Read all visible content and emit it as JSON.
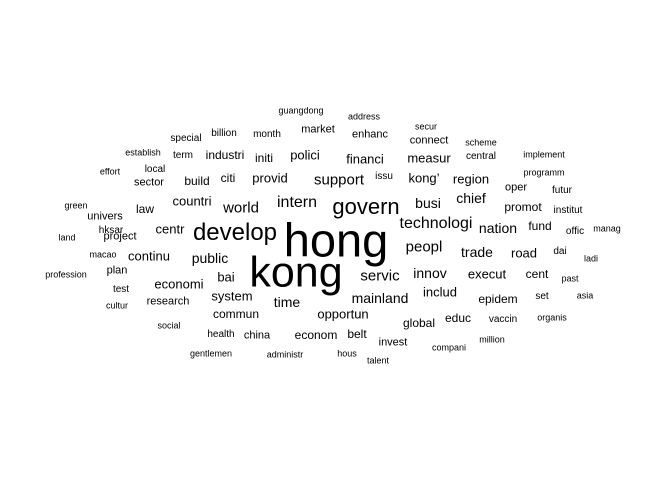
{
  "words": [
    {
      "text": "hong",
      "size": 47
    },
    {
      "text": "kong",
      "size": 43
    },
    {
      "text": "develop",
      "size": 24
    },
    {
      "text": "govern",
      "size": 22
    },
    {
      "text": "intern",
      "size": 16
    },
    {
      "text": "technologi",
      "size": 16
    },
    {
      "text": "servic",
      "size": 15
    },
    {
      "text": "world",
      "size": 15
    },
    {
      "text": "support",
      "size": 15
    },
    {
      "text": "peopl",
      "size": 15
    },
    {
      "text": "busi",
      "size": 14
    },
    {
      "text": "public",
      "size": 14
    },
    {
      "text": "innov",
      "size": 14
    },
    {
      "text": "nation",
      "size": 14
    },
    {
      "text": "chief",
      "size": 14
    },
    {
      "text": "trade",
      "size": 14
    },
    {
      "text": "time",
      "size": 14
    },
    {
      "text": "mainland",
      "size": 14
    },
    {
      "text": "region",
      "size": 13
    },
    {
      "text": "measur",
      "size": 13
    },
    {
      "text": "financi",
      "size": 13
    },
    {
      "text": "provid",
      "size": 13
    },
    {
      "text": "countri",
      "size": 13
    },
    {
      "text": "centr",
      "size": 13
    },
    {
      "text": "continu",
      "size": 13
    },
    {
      "text": "economi",
      "size": 13
    },
    {
      "text": "bai",
      "size": 13
    },
    {
      "text": "system",
      "size": 13
    },
    {
      "text": "opportun",
      "size": 13
    },
    {
      "text": "includ",
      "size": 13
    },
    {
      "text": "execut",
      "size": 13
    },
    {
      "text": "road",
      "size": 13
    },
    {
      "text": "kong’",
      "size": 13
    },
    {
      "text": "polici",
      "size": 13
    },
    {
      "text": "commun",
      "size": 12
    },
    {
      "text": "econom",
      "size": 12
    },
    {
      "text": "belt",
      "size": 12
    },
    {
      "text": "global",
      "size": 12
    },
    {
      "text": "educ",
      "size": 12
    },
    {
      "text": "epidem",
      "size": 12
    },
    {
      "text": "promot",
      "size": 12
    },
    {
      "text": "fund",
      "size": 12
    },
    {
      "text": "cent",
      "size": 12
    },
    {
      "text": "citi",
      "size": 12
    },
    {
      "text": "industri",
      "size": 12
    },
    {
      "text": "initi",
      "size": 12
    },
    {
      "text": "build",
      "size": 12
    },
    {
      "text": "law",
      "size": 12
    },
    {
      "text": "project",
      "size": 11
    },
    {
      "text": "research",
      "size": 11
    },
    {
      "text": "oper",
      "size": 11
    },
    {
      "text": "connect",
      "size": 11
    },
    {
      "text": "enhanc",
      "size": 11
    },
    {
      "text": "market",
      "size": 11
    },
    {
      "text": "sector",
      "size": 11
    },
    {
      "text": "univers",
      "size": 11
    },
    {
      "text": "plan",
      "size": 11
    },
    {
      "text": "invest",
      "size": 11
    },
    {
      "text": "china",
      "size": 11
    },
    {
      "text": "health",
      "size": 10
    },
    {
      "text": "dai",
      "size": 10
    },
    {
      "text": "hksar",
      "size": 10
    },
    {
      "text": "test",
      "size": 10
    },
    {
      "text": "term",
      "size": 10
    },
    {
      "text": "month",
      "size": 10
    },
    {
      "text": "central",
      "size": 10
    },
    {
      "text": "local",
      "size": 10
    },
    {
      "text": "offic",
      "size": 10
    },
    {
      "text": "institut",
      "size": 10
    },
    {
      "text": "futur",
      "size": 10
    },
    {
      "text": "vaccin",
      "size": 10
    },
    {
      "text": "special",
      "size": 10
    },
    {
      "text": "billion",
      "size": 10
    },
    {
      "text": "issu",
      "size": 10
    },
    {
      "text": "set",
      "size": 10
    },
    {
      "text": "guangdong",
      "size": 9
    },
    {
      "text": "address",
      "size": 9
    },
    {
      "text": "secur",
      "size": 9
    },
    {
      "text": "scheme",
      "size": 9
    },
    {
      "text": "implement",
      "size": 9
    },
    {
      "text": "establish",
      "size": 9
    },
    {
      "text": "effort",
      "size": 9
    },
    {
      "text": "programm",
      "size": 9
    },
    {
      "text": "green",
      "size": 9
    },
    {
      "text": "land",
      "size": 9
    },
    {
      "text": "macao",
      "size": 9
    },
    {
      "text": "profession",
      "size": 9
    },
    {
      "text": "cultur",
      "size": 9
    },
    {
      "text": "social",
      "size": 9
    },
    {
      "text": "gentlemen",
      "size": 9
    },
    {
      "text": "administr",
      "size": 9
    },
    {
      "text": "hous",
      "size": 9
    },
    {
      "text": "talent",
      "size": 9
    },
    {
      "text": "compani",
      "size": 9
    },
    {
      "text": "million",
      "size": 9
    },
    {
      "text": "organis",
      "size": 9
    },
    {
      "text": "past",
      "size": 9
    },
    {
      "text": "asia",
      "size": 9
    },
    {
      "text": "ladi",
      "size": 9
    },
    {
      "text": "manag",
      "size": 9
    }
  ]
}
